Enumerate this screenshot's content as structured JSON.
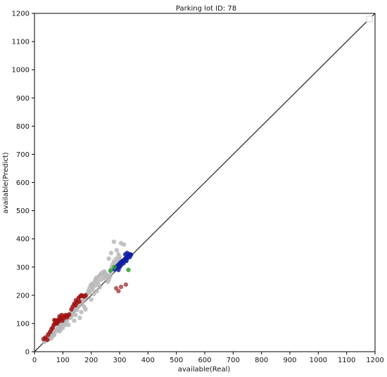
{
  "chart_data": {
    "type": "scatter",
    "title": "Parking lot ID: 78",
    "xlabel": "available(Real)",
    "ylabel": "available(Predict)",
    "xlim": [
      0,
      1200
    ],
    "ylim": [
      0,
      1200
    ],
    "xticks": [
      "0",
      "100",
      "200",
      "300",
      "400",
      "500",
      "600",
      "700",
      "800",
      "900",
      "1000",
      "1100",
      "1200"
    ],
    "yticks": [
      "0",
      "100",
      "200",
      "300",
      "400",
      "500",
      "600",
      "700",
      "800",
      "900",
      "1000",
      "1100",
      "1200"
    ],
    "reference_line": {
      "from": [
        0,
        0
      ],
      "to": [
        1200,
        1200
      ],
      "color": "#333333"
    },
    "grid": false,
    "legend": "top-right (empty marker)",
    "series": [
      {
        "color": "#b8b8b8",
        "points": [
          [
            35,
            35
          ],
          [
            42,
            40
          ],
          [
            48,
            50
          ],
          [
            52,
            45
          ],
          [
            58,
            55
          ],
          [
            62,
            60
          ],
          [
            66,
            68
          ],
          [
            70,
            62
          ],
          [
            74,
            72
          ],
          [
            78,
            80
          ],
          [
            82,
            76
          ],
          [
            86,
            85
          ],
          [
            90,
            88
          ],
          [
            94,
            95
          ],
          [
            98,
            92
          ],
          [
            102,
            100
          ],
          [
            106,
            105
          ],
          [
            110,
            112
          ],
          [
            114,
            108
          ],
          [
            118,
            118
          ],
          [
            122,
            125
          ],
          [
            126,
            120
          ],
          [
            130,
            132
          ],
          [
            134,
            140
          ],
          [
            138,
            135
          ],
          [
            142,
            150
          ],
          [
            146,
            155
          ],
          [
            150,
            148
          ],
          [
            154,
            160
          ],
          [
            158,
            170
          ],
          [
            162,
            175
          ],
          [
            166,
            168
          ],
          [
            170,
            180
          ],
          [
            174,
            185
          ],
          [
            178,
            190
          ],
          [
            182,
            195
          ],
          [
            186,
            205
          ],
          [
            190,
            215
          ],
          [
            194,
            225
          ],
          [
            198,
            235
          ],
          [
            202,
            240
          ],
          [
            206,
            230
          ],
          [
            210,
            245
          ],
          [
            214,
            255
          ],
          [
            218,
            262
          ],
          [
            222,
            250
          ],
          [
            226,
            265
          ],
          [
            230,
            270
          ],
          [
            234,
            275
          ],
          [
            238,
            280
          ],
          [
            242,
            270
          ],
          [
            246,
            285
          ],
          [
            250,
            278
          ],
          [
            255,
            262
          ],
          [
            258,
            248
          ],
          [
            262,
            255
          ],
          [
            265,
            265
          ],
          [
            268,
            285
          ],
          [
            272,
            300
          ],
          [
            276,
            310
          ],
          [
            280,
            320
          ],
          [
            284,
            298
          ],
          [
            288,
            330
          ],
          [
            292,
            315
          ],
          [
            296,
            345
          ],
          [
            300,
            325
          ],
          [
            305,
            385
          ],
          [
            315,
            380
          ],
          [
            262,
            330
          ],
          [
            270,
            350
          ],
          [
            280,
            390
          ],
          [
            290,
            360
          ],
          [
            300,
            335
          ],
          [
            276,
            300
          ],
          [
            268,
            272
          ],
          [
            75,
            95
          ],
          [
            85,
            110
          ],
          [
            95,
            100
          ],
          [
            120,
            95
          ],
          [
            140,
            110
          ],
          [
            160,
            120
          ],
          [
            180,
            150
          ],
          [
            200,
            185
          ],
          [
            210,
            205
          ],
          [
            220,
            215
          ],
          [
            230,
            228
          ],
          [
            50,
            65
          ],
          [
            60,
            70
          ],
          [
            100,
            85
          ],
          [
            110,
            95
          ],
          [
            130,
            125
          ],
          [
            145,
            130
          ],
          [
            165,
            140
          ],
          [
            175,
            160
          ],
          [
            195,
            210
          ],
          [
            205,
            220
          ],
          [
            215,
            235
          ],
          [
            225,
            240
          ],
          [
            235,
            255
          ],
          [
            245,
            260
          ],
          [
            255,
            272
          ],
          [
            105,
            115
          ],
          [
            115,
            122
          ],
          [
            125,
            135
          ],
          [
            135,
            148
          ],
          [
            60,
            48
          ],
          [
            68,
            58
          ],
          [
            88,
            72
          ],
          [
            92,
            78
          ]
        ]
      },
      {
        "color": "#a01010",
        "points": [
          [
            32,
            45
          ],
          [
            38,
            50
          ],
          [
            45,
            42
          ],
          [
            48,
            60
          ],
          [
            55,
            70
          ],
          [
            60,
            80
          ],
          [
            64,
            85
          ],
          [
            68,
            95
          ],
          [
            72,
            100
          ],
          [
            75,
            110
          ],
          [
            78,
            105
          ],
          [
            82,
            112
          ],
          [
            86,
            108
          ],
          [
            90,
            115
          ],
          [
            94,
            120
          ],
          [
            98,
            110
          ],
          [
            102,
            118
          ],
          [
            106,
            125
          ],
          [
            110,
            130
          ],
          [
            114,
            122
          ],
          [
            118,
            128
          ],
          [
            122,
            132
          ],
          [
            130,
            150
          ],
          [
            135,
            160
          ],
          [
            140,
            170
          ],
          [
            145,
            165
          ],
          [
            150,
            175
          ],
          [
            155,
            190
          ],
          [
            160,
            195
          ],
          [
            165,
            200
          ],
          [
            170,
            198
          ],
          [
            175,
            196
          ],
          [
            180,
            200
          ],
          [
            70,
            112
          ],
          [
            80,
            100
          ],
          [
            88,
            125
          ],
          [
            96,
            130
          ],
          [
            146,
            182
          ],
          [
            158,
            178
          ]
        ]
      },
      {
        "color": "#a84848",
        "points": [
          [
            288,
            225
          ],
          [
            296,
            215
          ],
          [
            305,
            230
          ],
          [
            322,
            238
          ]
        ]
      },
      {
        "color": "#1020a0",
        "points": [
          [
            282,
            292
          ],
          [
            286,
            300
          ],
          [
            290,
            298
          ],
          [
            292,
            305
          ],
          [
            295,
            302
          ],
          [
            298,
            310
          ],
          [
            300,
            305
          ],
          [
            302,
            315
          ],
          [
            305,
            312
          ],
          [
            308,
            320
          ],
          [
            310,
            318
          ],
          [
            312,
            322
          ],
          [
            315,
            325
          ],
          [
            318,
            328
          ],
          [
            320,
            330
          ],
          [
            322,
            326
          ],
          [
            325,
            335
          ],
          [
            328,
            332
          ],
          [
            330,
            340
          ],
          [
            332,
            338
          ],
          [
            335,
            342
          ],
          [
            338,
            345
          ],
          [
            320,
            345
          ],
          [
            326,
            350
          ],
          [
            334,
            346
          ],
          [
            300,
            300
          ],
          [
            296,
            290
          ],
          [
            306,
            308
          ],
          [
            314,
            314
          ],
          [
            324,
            322
          ],
          [
            336,
            336
          ],
          [
            340,
            344
          ]
        ]
      },
      {
        "color": "#2ca02c",
        "points": [
          [
            268,
            288
          ],
          [
            282,
            300
          ],
          [
            331,
            290
          ]
        ]
      }
    ]
  }
}
